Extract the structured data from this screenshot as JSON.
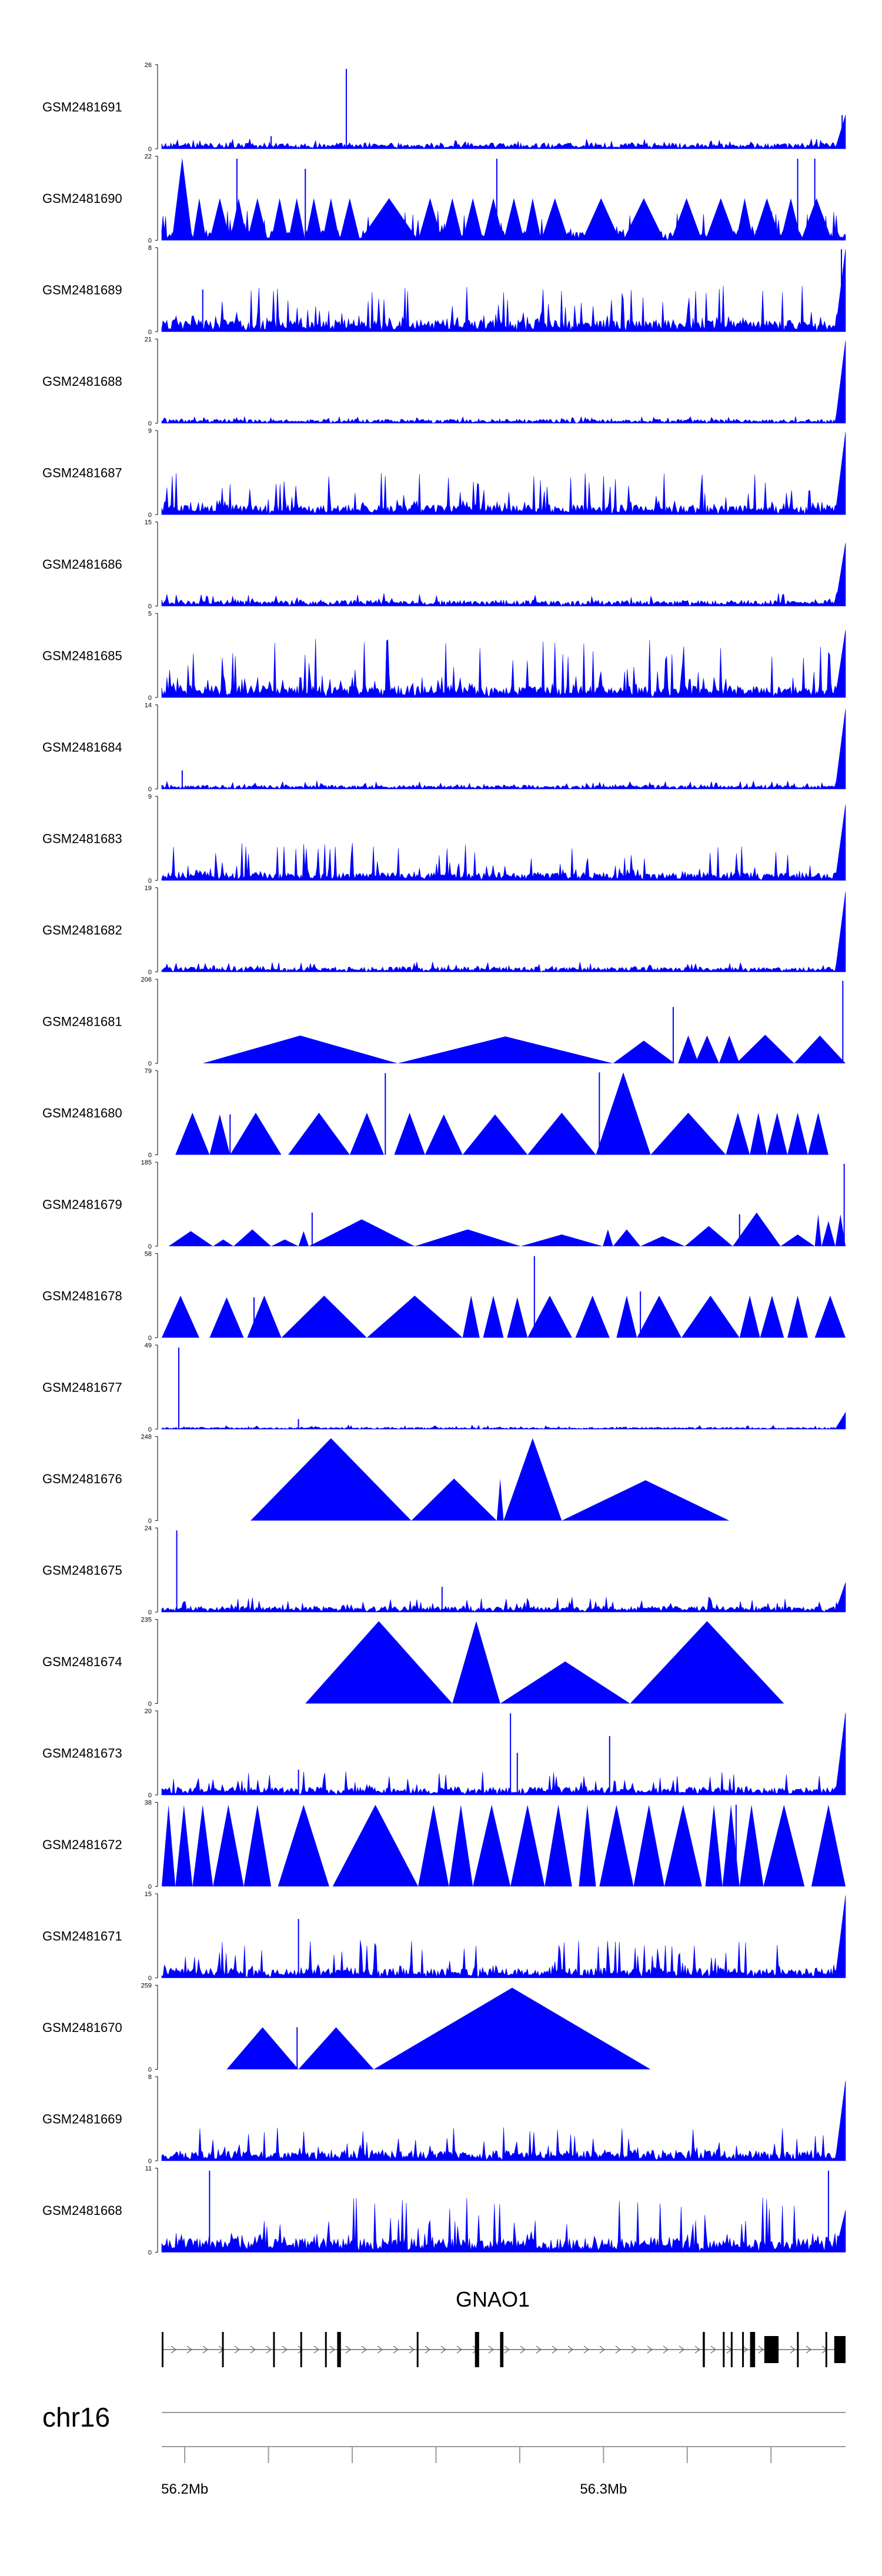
{
  "chart_data": {
    "type": "area",
    "color": "#0000ff",
    "gene": {
      "name": "GNAO1",
      "strand": "+",
      "start": 56.1945,
      "end": 56.3578,
      "exons": [
        [
          56.1945,
          56.1948
        ],
        [
          56.2089,
          56.2091
        ],
        [
          56.2211,
          56.2213
        ],
        [
          56.2276,
          56.2278
        ],
        [
          56.2335,
          56.2337
        ],
        [
          56.2364,
          56.2373
        ],
        [
          56.2554,
          56.2556
        ],
        [
          56.2693,
          56.2703
        ],
        [
          56.2753,
          56.2761
        ],
        [
          56.3237,
          56.3242
        ],
        [
          56.3285,
          56.3287
        ],
        [
          56.3304,
          56.3307
        ],
        [
          56.3331,
          56.3335
        ],
        [
          56.335,
          56.3362
        ],
        [
          56.3384,
          56.3418
        ],
        [
          56.3462,
          56.3465
        ],
        [
          56.353,
          56.3532
        ],
        [
          56.3551,
          56.3578
        ]
      ]
    },
    "chromosome": "chr16",
    "xlim": [
      56.1945,
      56.3578
    ],
    "xunit": "Mb",
    "xticks": [
      56.2,
      56.22,
      56.24,
      56.26,
      56.28,
      56.3,
      56.32,
      56.34
    ],
    "xtick_labels": [
      {
        "value": 56.2,
        "label": "56.2Mb"
      },
      {
        "value": 56.3,
        "label": "56.3Mb"
      }
    ],
    "tracks": [
      {
        "name": "GSM2481691",
        "ymin": "0",
        "ymax": "26",
        "style": "dense",
        "baseline": 0.06,
        "noise": 0.12,
        "seed": 91,
        "peaks": [
          [
            0.27,
            0.95
          ],
          [
            0.995,
            0.4
          ],
          [
            0.16,
            0.15
          ]
        ],
        "end_peak": 0.4
      },
      {
        "name": "GSM2481690",
        "ymin": "0",
        "ymax": "22",
        "style": "dense",
        "baseline": 0.1,
        "noise": 0.35,
        "seed": 90,
        "triangles": [
          [
            0.015,
            0.045,
            0.98
          ],
          [
            0.045,
            0.065,
            0.5
          ],
          [
            0.07,
            0.1,
            0.5
          ],
          [
            0.1,
            0.125,
            0.5
          ],
          [
            0.125,
            0.155,
            0.5
          ],
          [
            0.16,
            0.185,
            0.5
          ],
          [
            0.185,
            0.21,
            0.5
          ],
          [
            0.21,
            0.235,
            0.5
          ],
          [
            0.235,
            0.26,
            0.5
          ],
          [
            0.26,
            0.29,
            0.5
          ],
          [
            0.29,
            0.375,
            0.5
          ],
          [
            0.375,
            0.41,
            0.5
          ],
          [
            0.41,
            0.44,
            0.5
          ],
          [
            0.44,
            0.47,
            0.5
          ],
          [
            0.47,
            0.5,
            0.5
          ],
          [
            0.5,
            0.53,
            0.5
          ],
          [
            0.53,
            0.555,
            0.5
          ],
          [
            0.555,
            0.595,
            0.5
          ],
          [
            0.615,
            0.67,
            0.5
          ],
          [
            0.675,
            0.735,
            0.5
          ],
          [
            0.745,
            0.79,
            0.5
          ],
          [
            0.795,
            0.84,
            0.5
          ],
          [
            0.84,
            0.865,
            0.5
          ],
          [
            0.865,
            0.905,
            0.5
          ],
          [
            0.905,
            0.935,
            0.5
          ],
          [
            0.935,
            0.98,
            0.5
          ]
        ],
        "peaks": [
          [
            0.11,
            0.97
          ],
          [
            0.21,
            0.85
          ],
          [
            0.49,
            0.97
          ],
          [
            0.955,
            0.97
          ],
          [
            0.93,
            0.97
          ]
        ]
      },
      {
        "name": "GSM2481689",
        "ymin": "0",
        "ymax": "8",
        "style": "dense",
        "baseline": 0.12,
        "noise": 0.55,
        "seed": 89,
        "peaks": [
          [
            0.994,
            0.98
          ],
          [
            0.06,
            0.5
          ]
        ],
        "end_peak": 0.98
      },
      {
        "name": "GSM2481688",
        "ymin": "0",
        "ymax": "21",
        "style": "dense",
        "baseline": 0.04,
        "noise": 0.08,
        "seed": 88,
        "peaks": [],
        "end_peak": 0.98
      },
      {
        "name": "GSM2481687",
        "ymin": "0",
        "ymax": "9",
        "style": "dense",
        "baseline": 0.1,
        "noise": 0.5,
        "seed": 87,
        "peaks": [],
        "end_peak": 0.98
      },
      {
        "name": "GSM2481686",
        "ymin": "0",
        "ymax": "15",
        "style": "dense",
        "baseline": 0.06,
        "noise": 0.16,
        "seed": 86,
        "peaks": [],
        "end_peak": 0.75
      },
      {
        "name": "GSM2481685",
        "ymin": "0",
        "ymax": "5",
        "style": "dense",
        "baseline": 0.12,
        "noise": 0.7,
        "seed": 85,
        "peaks": [],
        "end_peak": 0.8
      },
      {
        "name": "GSM2481684",
        "ymin": "0",
        "ymax": "14",
        "style": "dense",
        "baseline": 0.04,
        "noise": 0.1,
        "seed": 84,
        "peaks": [
          [
            0.03,
            0.22
          ]
        ],
        "end_peak": 0.95
      },
      {
        "name": "GSM2481683",
        "ymin": "0",
        "ymax": "9",
        "style": "dense",
        "baseline": 0.08,
        "noise": 0.45,
        "seed": 83,
        "peaks": [],
        "end_peak": 0.9
      },
      {
        "name": "GSM2481682",
        "ymin": "0",
        "ymax": "19",
        "style": "dense",
        "baseline": 0.05,
        "noise": 0.12,
        "seed": 82,
        "peaks": [],
        "end_peak": 0.95
      },
      {
        "name": "GSM2481681",
        "ymin": "0",
        "ymax": "206",
        "style": "sparse",
        "triangles": [
          [
            0.06,
            0.345,
            0.33
          ],
          [
            0.345,
            0.66,
            0.32
          ],
          [
            0.66,
            0.75,
            0.27
          ],
          [
            0.755,
            0.785,
            0.33
          ],
          [
            0.78,
            0.815,
            0.33
          ],
          [
            0.815,
            0.845,
            0.33
          ],
          [
            0.84,
            0.925,
            0.34
          ],
          [
            0.925,
            1.0,
            0.33
          ]
        ],
        "peaks": [
          [
            0.748,
            0.67
          ],
          [
            0.996,
            0.98
          ]
        ]
      },
      {
        "name": "GSM2481680",
        "ymin": "0",
        "ymax": "79",
        "style": "sparse",
        "triangles": [
          [
            0.02,
            0.07,
            0.5
          ],
          [
            0.07,
            0.1,
            0.48
          ],
          [
            0.1,
            0.175,
            0.5
          ],
          [
            0.185,
            0.275,
            0.5
          ],
          [
            0.275,
            0.325,
            0.5
          ],
          [
            0.34,
            0.385,
            0.5
          ],
          [
            0.385,
            0.44,
            0.48
          ],
          [
            0.44,
            0.535,
            0.48
          ],
          [
            0.535,
            0.635,
            0.5
          ],
          [
            0.635,
            0.715,
            0.98
          ],
          [
            0.715,
            0.825,
            0.5
          ],
          [
            0.825,
            0.86,
            0.5
          ],
          [
            0.86,
            0.885,
            0.5
          ],
          [
            0.885,
            0.915,
            0.5
          ],
          [
            0.915,
            0.945,
            0.5
          ],
          [
            0.945,
            0.975,
            0.5
          ]
        ],
        "peaks": [
          [
            0.327,
            0.97
          ],
          [
            0.1,
            0.48
          ],
          [
            0.64,
            0.98
          ]
        ]
      },
      {
        "name": "GSM2481679",
        "ymin": "0",
        "ymax": "185",
        "style": "sparse",
        "triangles": [
          [
            0.01,
            0.075,
            0.18
          ],
          [
            0.075,
            0.105,
            0.08
          ],
          [
            0.105,
            0.16,
            0.2
          ],
          [
            0.16,
            0.2,
            0.08
          ],
          [
            0.2,
            0.215,
            0.18
          ],
          [
            0.215,
            0.37,
            0.32
          ],
          [
            0.37,
            0.525,
            0.2
          ],
          [
            0.525,
            0.645,
            0.14
          ],
          [
            0.645,
            0.66,
            0.2
          ],
          [
            0.66,
            0.7,
            0.2
          ],
          [
            0.7,
            0.765,
            0.12
          ],
          [
            0.765,
            0.835,
            0.24
          ],
          [
            0.835,
            0.905,
            0.4
          ],
          [
            0.905,
            0.955,
            0.14
          ],
          [
            0.955,
            0.965,
            0.38
          ],
          [
            0.965,
            0.985,
            0.3
          ],
          [
            0.985,
            1.0,
            0.38
          ]
        ],
        "peaks": [
          [
            0.22,
            0.4
          ],
          [
            0.845,
            0.38
          ],
          [
            0.998,
            0.98
          ]
        ]
      },
      {
        "name": "GSM2481678",
        "ymin": "0",
        "ymax": "58",
        "style": "sparse",
        "triangles": [
          [
            0.0,
            0.055,
            0.5
          ],
          [
            0.07,
            0.12,
            0.48
          ],
          [
            0.125,
            0.175,
            0.5
          ],
          [
            0.175,
            0.3,
            0.5
          ],
          [
            0.3,
            0.44,
            0.5
          ],
          [
            0.44,
            0.465,
            0.5
          ],
          [
            0.47,
            0.5,
            0.5
          ],
          [
            0.505,
            0.535,
            0.48
          ],
          [
            0.535,
            0.6,
            0.5
          ],
          [
            0.605,
            0.655,
            0.5
          ],
          [
            0.665,
            0.695,
            0.5
          ],
          [
            0.695,
            0.76,
            0.5
          ],
          [
            0.76,
            0.845,
            0.5
          ],
          [
            0.845,
            0.875,
            0.5
          ],
          [
            0.875,
            0.91,
            0.5
          ],
          [
            0.915,
            0.945,
            0.5
          ],
          [
            0.955,
            1.0,
            0.5
          ]
        ],
        "peaks": [
          [
            0.545,
            0.97
          ],
          [
            0.135,
            0.48
          ],
          [
            0.7,
            0.55
          ]
        ]
      },
      {
        "name": "GSM2481677",
        "ymin": "0",
        "ymax": "49",
        "style": "dense",
        "baseline": 0.02,
        "noise": 0.05,
        "seed": 77,
        "peaks": [
          [
            0.025,
            0.97
          ],
          [
            0.2,
            0.12
          ]
        ],
        "end_peak": 0.2
      },
      {
        "name": "GSM2481676",
        "ymin": "0",
        "ymax": "248",
        "style": "sparse",
        "triangles": [
          [
            0.13,
            0.365,
            0.98
          ],
          [
            0.365,
            0.49,
            0.5
          ],
          [
            0.49,
            0.5,
            0.5
          ],
          [
            0.5,
            0.585,
            0.98
          ],
          [
            0.585,
            0.83,
            0.48
          ]
        ],
        "peaks": []
      },
      {
        "name": "GSM2481675",
        "ymin": "0",
        "ymax": "24",
        "style": "dense",
        "baseline": 0.06,
        "noise": 0.18,
        "seed": 75,
        "peaks": [
          [
            0.022,
            0.97
          ],
          [
            0.41,
            0.3
          ]
        ],
        "end_peak": 0.35
      },
      {
        "name": "GSM2481674",
        "ymin": "0",
        "ymax": "235",
        "style": "sparse",
        "triangles": [
          [
            0.21,
            0.425,
            0.98
          ],
          [
            0.425,
            0.495,
            0.98
          ],
          [
            0.495,
            0.685,
            0.5
          ],
          [
            0.685,
            0.91,
            0.98
          ]
        ],
        "peaks": []
      },
      {
        "name": "GSM2481673",
        "ymin": "0",
        "ymax": "20",
        "style": "dense",
        "baseline": 0.08,
        "noise": 0.28,
        "seed": 73,
        "peaks": [
          [
            0.51,
            0.97
          ],
          [
            0.52,
            0.5
          ],
          [
            0.655,
            0.7
          ],
          [
            0.2,
            0.3
          ]
        ],
        "end_peak": 0.98
      },
      {
        "name": "GSM2481672",
        "ymin": "0",
        "ymax": "38",
        "style": "sparse",
        "triangles": [
          [
            0.0,
            0.02,
            0.97
          ],
          [
            0.02,
            0.045,
            0.97
          ],
          [
            0.045,
            0.075,
            0.97
          ],
          [
            0.075,
            0.12,
            0.97
          ],
          [
            0.12,
            0.16,
            0.97
          ],
          [
            0.17,
            0.245,
            0.97
          ],
          [
            0.25,
            0.375,
            0.97
          ],
          [
            0.375,
            0.42,
            0.97
          ],
          [
            0.42,
            0.455,
            0.97
          ],
          [
            0.455,
            0.51,
            0.97
          ],
          [
            0.51,
            0.56,
            0.97
          ],
          [
            0.56,
            0.6,
            0.97
          ],
          [
            0.61,
            0.635,
            0.97
          ],
          [
            0.64,
            0.69,
            0.97
          ],
          [
            0.69,
            0.735,
            0.97
          ],
          [
            0.735,
            0.79,
            0.97
          ],
          [
            0.795,
            0.82,
            0.97
          ],
          [
            0.82,
            0.845,
            0.97
          ],
          [
            0.845,
            0.88,
            0.97
          ],
          [
            0.88,
            0.94,
            0.97
          ],
          [
            0.95,
            1.0,
            0.97
          ]
        ],
        "peaks": [
          [
            0.84,
            0.97
          ]
        ]
      },
      {
        "name": "GSM2481671",
        "ymin": "0",
        "ymax": "15",
        "style": "dense",
        "baseline": 0.1,
        "noise": 0.45,
        "seed": 71,
        "peaks": [
          [
            0.2,
            0.7
          ]
        ],
        "end_peak": 0.98
      },
      {
        "name": "GSM2481670",
        "ymin": "0",
        "ymax": "259",
        "style": "sparse",
        "triangles": [
          [
            0.095,
            0.2,
            0.5
          ],
          [
            0.2,
            0.31,
            0.5
          ],
          [
            0.31,
            0.715,
            0.97
          ]
        ],
        "peaks": [
          [
            0.198,
            0.5
          ]
        ]
      },
      {
        "name": "GSM2481669",
        "ymin": "0",
        "ymax": "8",
        "style": "dense",
        "baseline": 0.1,
        "noise": 0.4,
        "seed": 69,
        "peaks": [],
        "end_peak": 0.95
      },
      {
        "name": "GSM2481668",
        "ymin": "0",
        "ymax": "11",
        "style": "dense",
        "baseline": 0.14,
        "noise": 0.65,
        "seed": 68,
        "peaks": [
          [
            0.975,
            0.97
          ],
          [
            0.07,
            0.97
          ]
        ],
        "end_peak": 0.5
      }
    ]
  }
}
